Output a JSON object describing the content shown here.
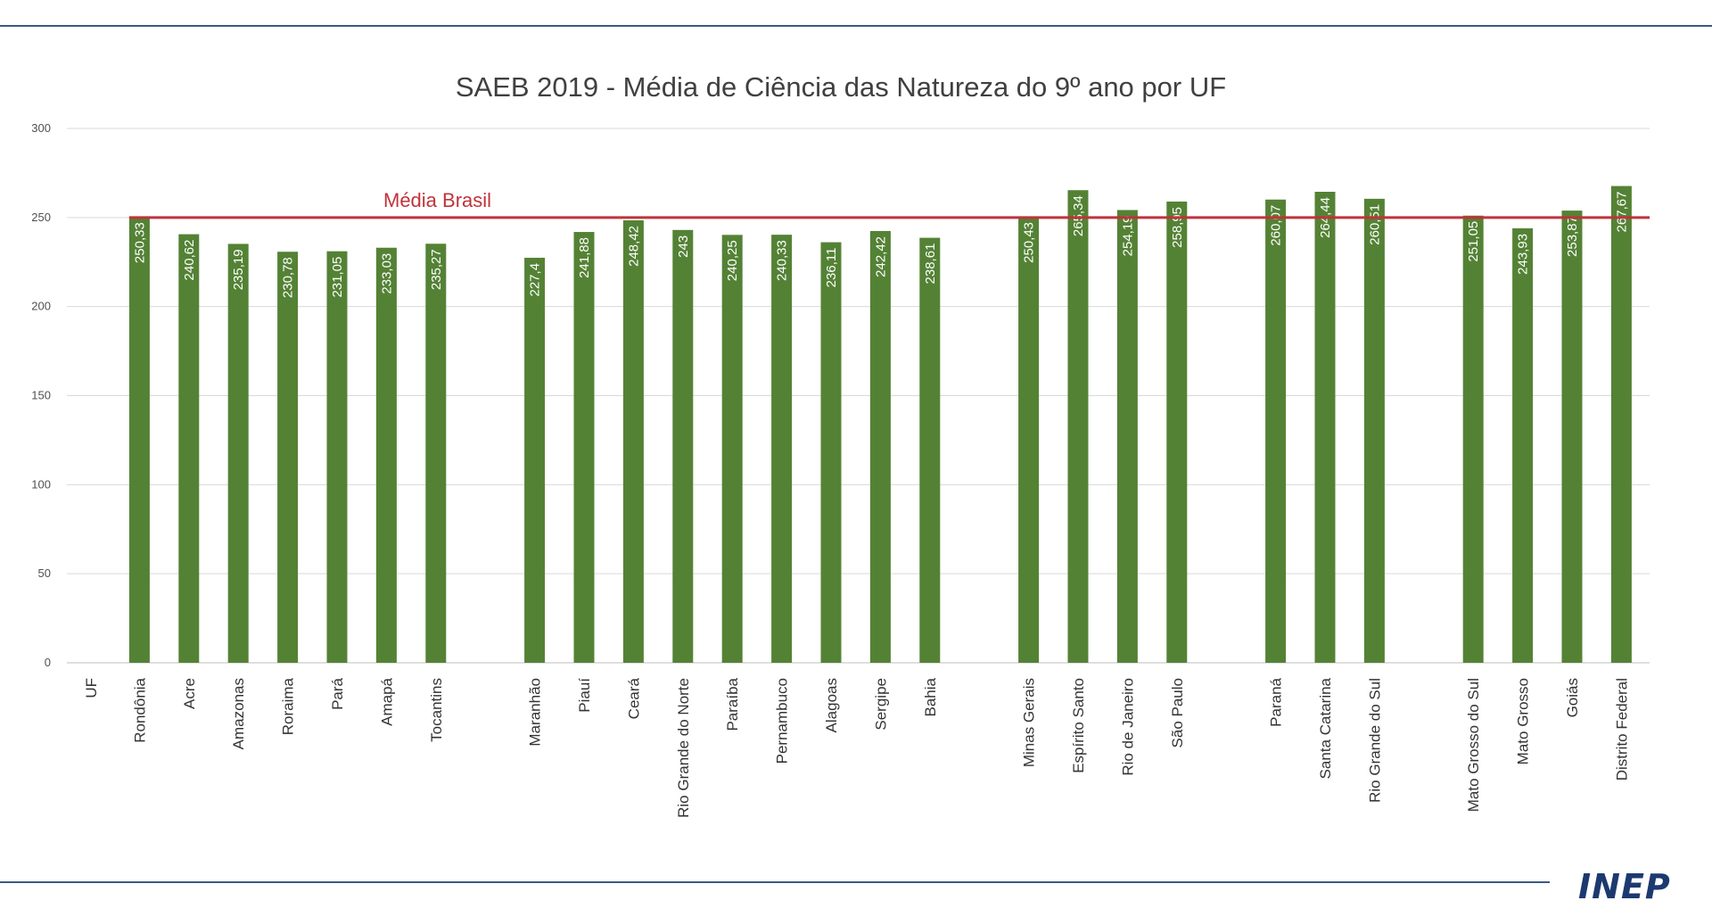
{
  "chart_data": {
    "type": "bar",
    "title": "SAEB 2019 - Média de Ciência das Natureza do 9º ano por UF",
    "xlabel": "UF",
    "ylabel": "",
    "ylim": [
      0,
      300
    ],
    "yticks": [
      0,
      50,
      100,
      150,
      200,
      250,
      300
    ],
    "grid": true,
    "bar_color": "#548235",
    "reference_line": {
      "label": "Média Brasil",
      "value": 250,
      "color": "#c0333a"
    },
    "categories": [
      "Rondônia",
      "Acre",
      "Amazonas",
      "Roraima",
      "Pará",
      "Amapá",
      "Tocantins",
      "",
      "Maranhão",
      "Piauí",
      "Ceará",
      "Rio Grande do Norte",
      "Paraíba",
      "Pernambuco",
      "Alagoas",
      "Sergipe",
      "Bahia",
      "",
      "Minas Gerais",
      "Espírito Santo",
      "Rio de Janeiro",
      "São Paulo",
      "",
      "Paraná",
      "Santa Catarina",
      "Rio Grande do Sul",
      "",
      "Mato Grosso do Sul",
      "Mato Grosso",
      "Goiás",
      "Distrito Federal"
    ],
    "values": [
      250.33,
      240.62,
      235.19,
      230.78,
      231.05,
      233.03,
      235.27,
      null,
      227.4,
      241.88,
      248.42,
      243,
      240.25,
      240.33,
      236.11,
      242.42,
      238.61,
      null,
      250.43,
      265.34,
      254.19,
      258.95,
      null,
      260.07,
      264.44,
      260.51,
      null,
      251.05,
      243.93,
      253.87,
      267.67
    ],
    "value_labels": [
      "250,33",
      "240,62",
      "235,19",
      "230,78",
      "231,05",
      "233,03",
      "235,27",
      "",
      "227,4",
      "241,88",
      "248,42",
      "243",
      "240,25",
      "240,33",
      "236,11",
      "242,42",
      "238,61",
      "",
      "250,43",
      "265,34",
      "254,19",
      "258,95",
      "",
      "260,07",
      "264,44",
      "260,51",
      "",
      "251,05",
      "243,93",
      "253,87",
      "267,67"
    ]
  },
  "footer": {
    "logo_text": "INEP"
  }
}
